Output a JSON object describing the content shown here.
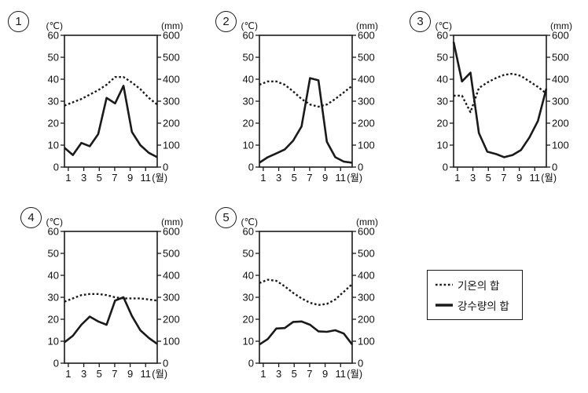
{
  "page": {
    "background": "#ffffff",
    "ink_color": "#1a1a1a"
  },
  "axes": {
    "left_unit": "(℃)",
    "right_unit": "(mm)",
    "x_unit": "(월)",
    "left_ticks": [
      0,
      10,
      20,
      30,
      40,
      50,
      60
    ],
    "right_ticks": [
      0,
      100,
      200,
      300,
      400,
      500,
      600
    ],
    "x_tick_labels": [
      1,
      3,
      5,
      7,
      9,
      11
    ],
    "left_range": [
      0,
      60
    ],
    "right_range": [
      0,
      600
    ],
    "x_range": [
      1,
      12
    ],
    "grid": false
  },
  "legend": {
    "position": "bottom-right",
    "items": [
      {
        "label": "기온의 합",
        "line_style": "dotted"
      },
      {
        "label": "강수량의 합",
        "line_style": "solid"
      }
    ]
  },
  "chart_data": [
    {
      "type": "line",
      "label": "1",
      "x": [
        1,
        2,
        3,
        4,
        5,
        6,
        7,
        8,
        9,
        10,
        11,
        12
      ],
      "series": [
        {
          "name": "기온의 합",
          "axis": "left",
          "style": "dotted",
          "values": [
            28,
            29.5,
            31,
            33,
            35,
            37.5,
            41,
            41,
            38.5,
            35.5,
            31.5,
            28.5
          ]
        },
        {
          "name": "강수량의 합",
          "axis": "right",
          "style": "solid",
          "values": [
            88,
            55,
            110,
            95,
            150,
            315,
            290,
            370,
            160,
            100,
            65,
            45
          ]
        }
      ]
    },
    {
      "type": "line",
      "label": "2",
      "x": [
        1,
        2,
        3,
        4,
        5,
        6,
        7,
        8,
        9,
        10,
        11,
        12
      ],
      "series": [
        {
          "name": "기온의 합",
          "axis": "left",
          "style": "dotted",
          "values": [
            37.5,
            39,
            39,
            37.5,
            34.5,
            31,
            28.5,
            27.5,
            28.5,
            31,
            34,
            37
          ]
        },
        {
          "name": "강수량의 합",
          "axis": "right",
          "style": "solid",
          "values": [
            20,
            45,
            62,
            80,
            120,
            185,
            405,
            395,
            115,
            45,
            25,
            20
          ]
        }
      ]
    },
    {
      "type": "line",
      "label": "3",
      "x": [
        1,
        2,
        3,
        4,
        5,
        6,
        7,
        8,
        9,
        10,
        11,
        12
      ],
      "series": [
        {
          "name": "기온의 합",
          "axis": "left",
          "style": "dotted",
          "values": [
            32.5,
            32.5,
            25,
            36,
            38.5,
            40.5,
            42,
            42.5,
            41.5,
            39,
            36.5,
            33.5
          ]
        },
        {
          "name": "강수량의 합",
          "axis": "right",
          "style": "solid",
          "values": [
            570,
            390,
            430,
            155,
            70,
            60,
            45,
            55,
            78,
            135,
            210,
            357
          ]
        }
      ]
    },
    {
      "type": "line",
      "label": "4",
      "x": [
        1,
        2,
        3,
        4,
        5,
        6,
        7,
        8,
        9,
        10,
        11,
        12
      ],
      "series": [
        {
          "name": "기온의 합",
          "axis": "left",
          "style": "dotted",
          "values": [
            28,
            29.5,
            31,
            31.5,
            31.5,
            31,
            30,
            29.5,
            29.5,
            29.5,
            29,
            28.5
          ]
        },
        {
          "name": "강수량의 합",
          "axis": "right",
          "style": "solid",
          "values": [
            95,
            125,
            175,
            212,
            190,
            175,
            285,
            300,
            215,
            150,
            115,
            88
          ]
        }
      ]
    },
    {
      "type": "line",
      "label": "5",
      "x": [
        1,
        2,
        3,
        4,
        5,
        6,
        7,
        8,
        9,
        10,
        11,
        12
      ],
      "series": [
        {
          "name": "기온의 합",
          "axis": "left",
          "style": "dotted",
          "values": [
            36.5,
            38,
            37.5,
            35,
            32,
            29.5,
            27.5,
            26.5,
            27,
            29,
            32.5,
            36
          ]
        },
        {
          "name": "강수량의 합",
          "axis": "right",
          "style": "solid",
          "values": [
            85,
            110,
            158,
            160,
            188,
            190,
            175,
            145,
            143,
            150,
            135,
            85
          ]
        }
      ]
    }
  ]
}
